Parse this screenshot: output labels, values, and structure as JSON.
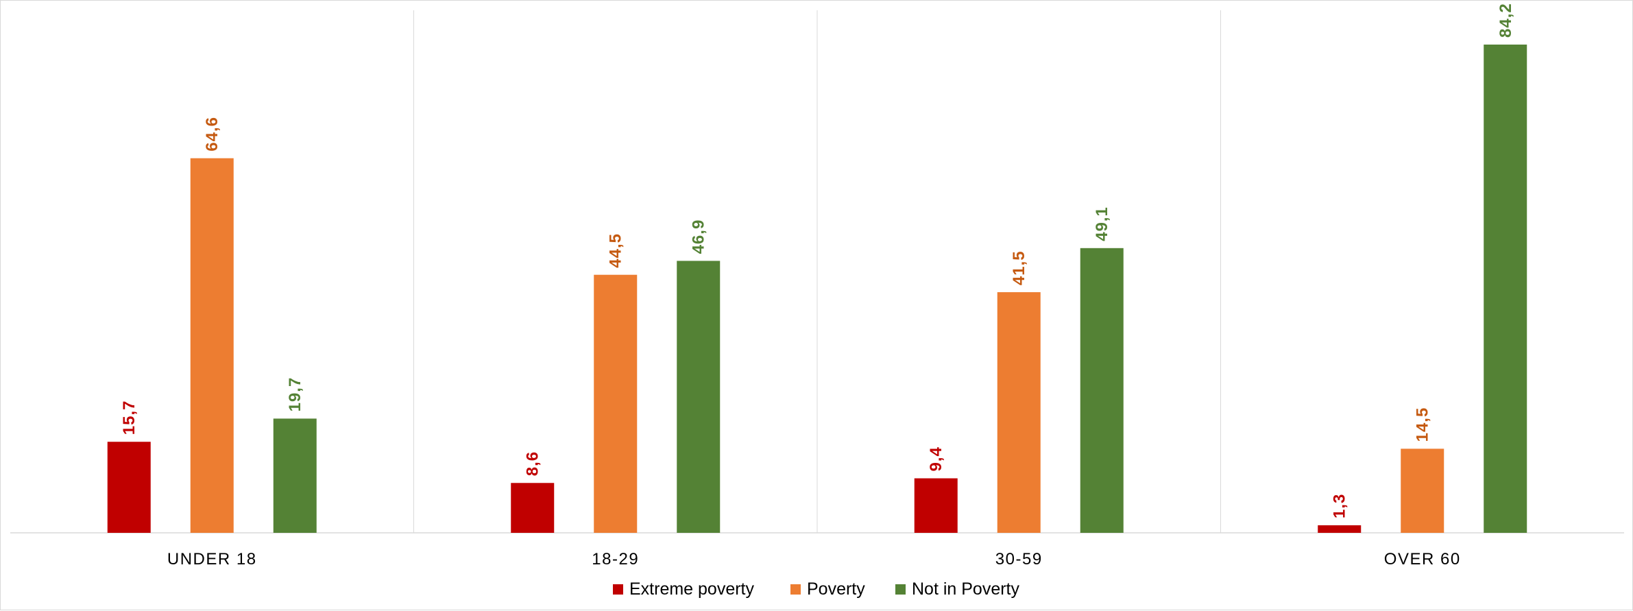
{
  "chart_data": {
    "type": "bar",
    "title": "",
    "xlabel": "",
    "ylabel": "",
    "ylim": [
      0,
      90
    ],
    "grid": false,
    "legend_position": "bottom",
    "categories": [
      "UNDER 18",
      "18-29",
      "30-59",
      "OVER 60"
    ],
    "series": [
      {
        "name": "Extreme poverty",
        "values": [
          15.7,
          8.6,
          9.4,
          1.3
        ],
        "labels": [
          "15,7",
          "8,6",
          "9,4",
          "1,3"
        ],
        "color": "#c00000",
        "label_color": "#c00000"
      },
      {
        "name": "Poverty",
        "values": [
          64.6,
          44.5,
          41.5,
          14.5
        ],
        "labels": [
          "64,6",
          "44,5",
          "41,5",
          "14,5"
        ],
        "color": "#ed7d31",
        "label_color": "#c55a11"
      },
      {
        "name": "Not in Poverty",
        "values": [
          19.7,
          46.9,
          49.1,
          84.2
        ],
        "labels": [
          "19,7",
          "46,9",
          "49,1",
          "84,2"
        ],
        "color": "#548235",
        "label_color": "#548235"
      }
    ]
  }
}
